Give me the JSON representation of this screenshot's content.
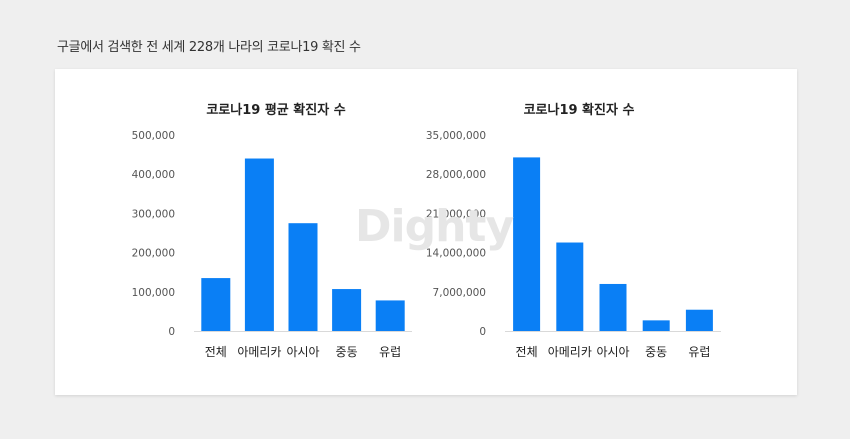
{
  "page": {
    "title": "구글에서 검색한 전 세계 228개 나라의 코로나19 확진 수",
    "watermark": "Dighty"
  },
  "chart_data": [
    {
      "type": "bar",
      "title": "코로나19 평균 확진자 수",
      "categories": [
        "전체",
        "아메리카",
        "아시아",
        "중동",
        "유럽"
      ],
      "values": [
        135000,
        440000,
        275000,
        107000,
        78000
      ],
      "ylim": [
        0,
        500000
      ],
      "yticks": [
        "0",
        "100,000",
        "200,000",
        "300,000",
        "400,000",
        "500,000"
      ],
      "grid": false,
      "color": "#0a7ff5"
    },
    {
      "type": "bar",
      "title": "코로나19 확진자 수",
      "categories": [
        "전체",
        "아메리카",
        "아시아",
        "중동",
        "유럽"
      ],
      "values": [
        31000000,
        15800000,
        8400000,
        1900000,
        3800000
      ],
      "ylim": [
        0,
        35000000
      ],
      "yticks": [
        "0",
        "7,000,000",
        "14,000,000",
        "21,000,000",
        "28,000,000",
        "35,000,000"
      ],
      "grid": false,
      "color": "#0a7ff5"
    }
  ]
}
